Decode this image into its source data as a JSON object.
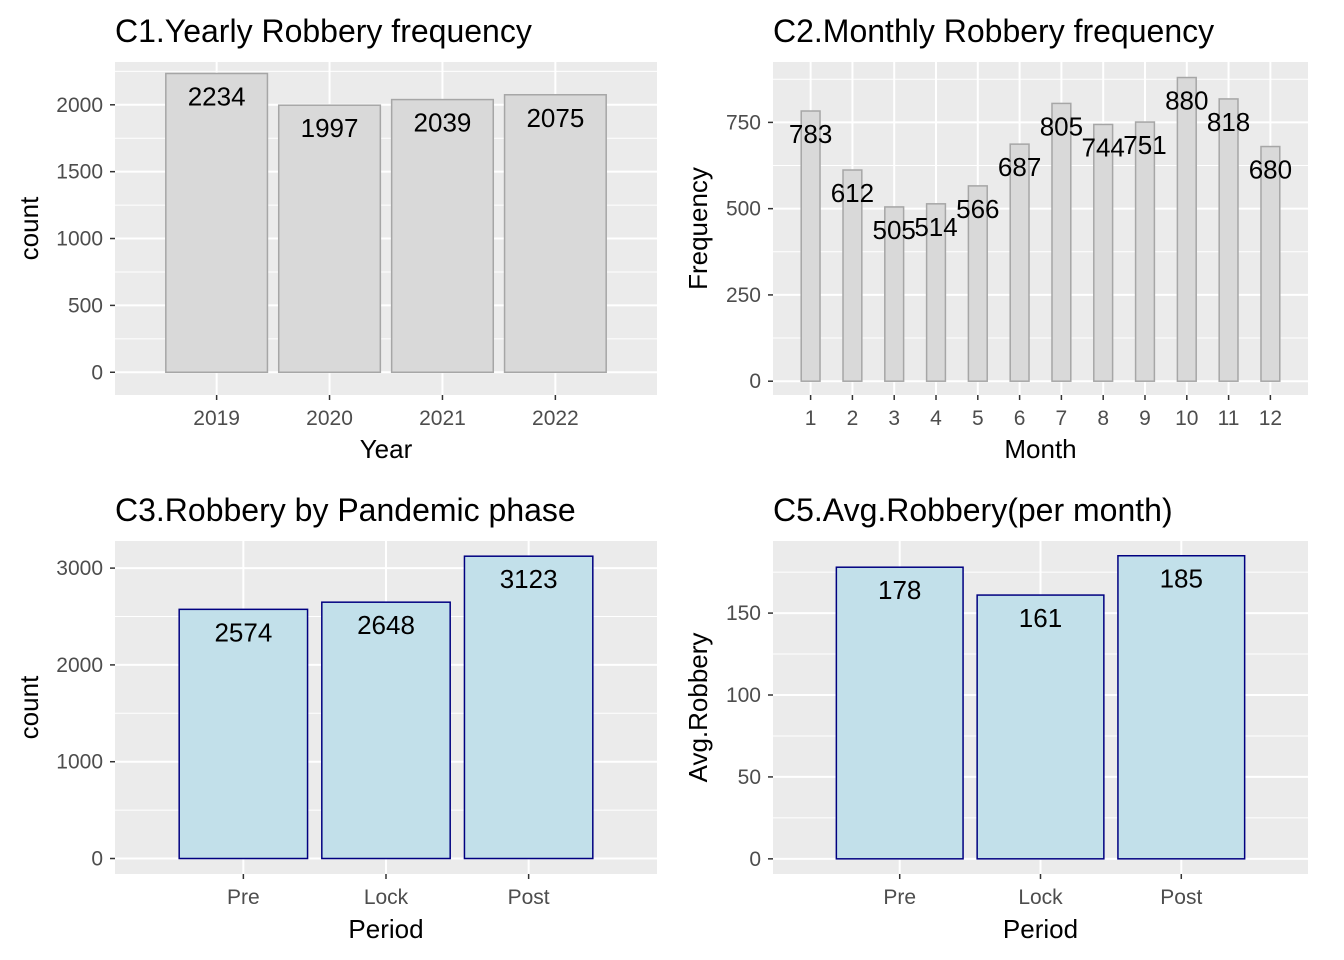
{
  "chart_data": [
    {
      "id": "c1",
      "type": "bar",
      "title": "C1.Yearly Robbery frequency",
      "xlabel": "Year",
      "ylabel": "count",
      "categories": [
        "2019",
        "2020",
        "2021",
        "2022"
      ],
      "values": [
        2234,
        1997,
        2039,
        2075
      ],
      "data_labels": [
        "2234",
        "1997",
        "2039",
        "2075"
      ],
      "ylim": [
        -170,
        2320
      ],
      "yticks": [
        0,
        500,
        1000,
        1500,
        2000
      ],
      "grid": true,
      "bar_fill": "#d9d9d9",
      "bar_stroke": "#a6a6a6"
    },
    {
      "id": "c2",
      "type": "bar",
      "title": "C2.Monthly Robbery frequency",
      "xlabel": "Month",
      "ylabel": "Frequency",
      "categories": [
        "1",
        "2",
        "3",
        "4",
        "5",
        "6",
        "7",
        "8",
        "9",
        "10",
        "11",
        "12"
      ],
      "values": [
        783,
        612,
        505,
        514,
        566,
        687,
        805,
        744,
        751,
        880,
        818,
        680
      ],
      "data_labels": [
        "783",
        "612",
        "505",
        "514",
        "566",
        "687",
        "805",
        "744",
        "751",
        "880",
        "818",
        "680"
      ],
      "ylim": [
        -40,
        925
      ],
      "yticks": [
        0,
        250,
        500,
        750
      ],
      "grid": true,
      "bar_fill": "#d9d9d9",
      "bar_stroke": "#a6a6a6"
    },
    {
      "id": "c3",
      "type": "bar",
      "title": "C3.Robbery by Pandemic phase",
      "xlabel": "Period",
      "ylabel": "count",
      "categories": [
        "Pre",
        "Lock",
        "Post"
      ],
      "values": [
        2574,
        2648,
        3123
      ],
      "data_labels": [
        "2574",
        "2648",
        "3123"
      ],
      "ylim": [
        -160,
        3280
      ],
      "yticks": [
        0,
        1000,
        2000,
        3000
      ],
      "grid": true,
      "bar_fill": "#c2e0ea",
      "bar_stroke": "#000080"
    },
    {
      "id": "c5",
      "type": "bar",
      "title": "C5.Avg.Robbery(per month)",
      "xlabel": "Period",
      "ylabel": "Avg.Robbery",
      "categories": [
        "Pre",
        "Lock",
        "Post"
      ],
      "values": [
        178,
        161,
        185
      ],
      "data_labels": [
        "178",
        "161",
        "185"
      ],
      "ylim": [
        -9.25,
        194
      ],
      "yticks": [
        0,
        50,
        100,
        150
      ],
      "grid": true,
      "bar_fill": "#c2e0ea",
      "bar_stroke": "#000080"
    }
  ],
  "colors": {
    "panel_background": "#ebebeb",
    "grid_major": "#ffffff",
    "tick_text": "#4d4d4d",
    "tick_mark": "#333333"
  }
}
